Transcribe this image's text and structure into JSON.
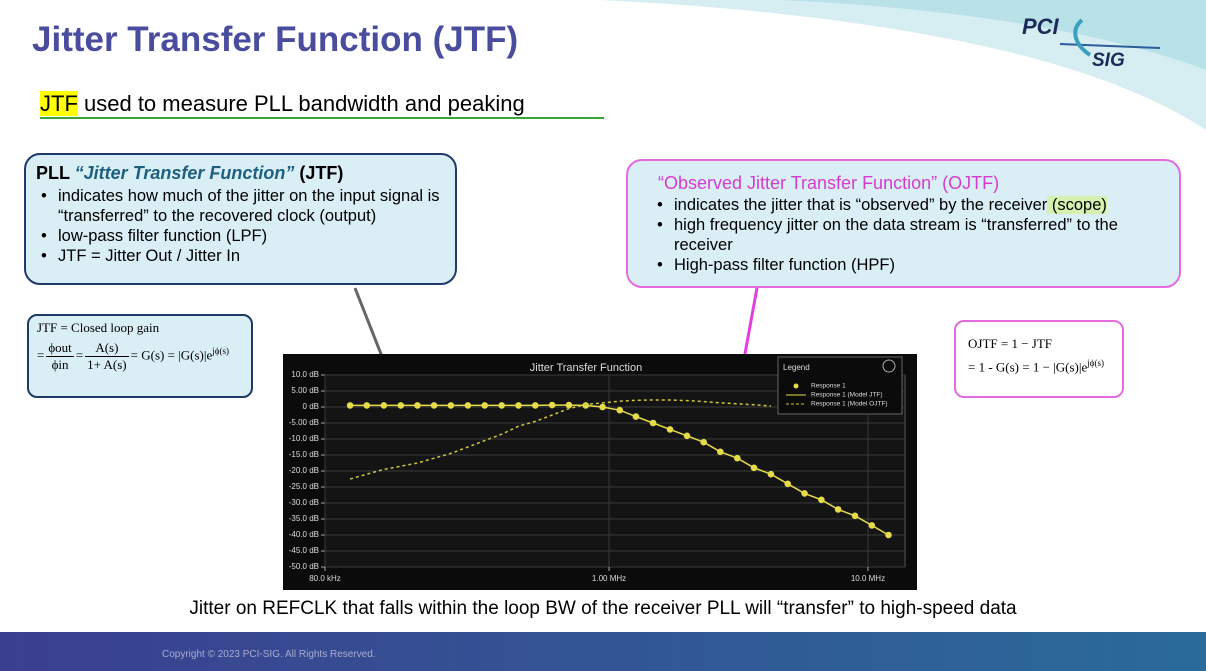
{
  "header": {
    "title": "Jitter Transfer Function (JTF)",
    "logo_top": "PCI",
    "logo_bottom": "SIG"
  },
  "subtitle": {
    "highlight": "JTF",
    "rest": " used to measure PLL bandwidth and peaking"
  },
  "left_box": {
    "heading_pre": "PLL ",
    "heading_em": "“Jitter Transfer Function”",
    "heading_post": " (JTF)",
    "bullets": [
      "indicates how much of the jitter on the input signal is “transferred” to the recovered clock (output)",
      "low-pass filter function (LPF)",
      "JTF = Jitter Out / Jitter In"
    ]
  },
  "right_box": {
    "heading": "“Observed Jitter Transfer Function” (OJTF)",
    "bullet1_text": "indicates the jitter that is “observed” by the receiver",
    "bullet1_highlight": " (scope) ",
    "bullets_rest": [
      "high frequency jitter on the data stream is “transferred” to the receiver",
      "High-pass filter function (HPF)"
    ]
  },
  "formula_left": {
    "line1": "JTF = Closed loop gain",
    "eq": "=",
    "num1": "ϕout",
    "den1": "ϕin",
    "eq2": "=",
    "num2": "A(s)",
    "den2": "1+ A(s)",
    "tail": "= G(s) = |G(s)|e",
    "sup": "jϕ(s)"
  },
  "formula_right": {
    "line1": "OJTF = 1 − JTF",
    "line2": "= 1 - G(s) = 1 − |G(s)|e",
    "sup": "jϕ(s)"
  },
  "footer": {
    "caption": "Jitter on REFCLK that falls within the loop BW of the receiver PLL will “transfer” to high-speed data",
    "copyright": "Copyright © 2023 PCI-SIG. All Rights Reserved."
  },
  "chart_data": {
    "type": "line",
    "title": "Jitter Transfer Function",
    "log_x": true,
    "grid": true,
    "legend": "top-right",
    "legend_title": "Legend",
    "x": [
      100000,
      116000,
      135000,
      157000,
      182000,
      211000,
      245000,
      285000,
      331000,
      385000,
      447000,
      519000,
      603000,
      700000,
      813000,
      944000,
      1100000,
      1270000,
      1480000,
      1720000,
      2000000,
      2320000,
      2690000,
      3130000,
      3630000,
      4220000,
      4900000,
      5690000,
      6610000,
      7670000,
      8910000,
      10350000,
      12000000
    ],
    "xlim": [
      80000,
      13900000
    ],
    "xticks": [
      {
        "value": 80000,
        "label": "80.0 kHz"
      },
      {
        "value": 1000000,
        "label": "1.00 MHz"
      },
      {
        "value": 10000000,
        "label": "10.0 MHz"
      }
    ],
    "ylim": [
      -50,
      10
    ],
    "yticks": [
      {
        "value": 10,
        "label": "10.0 dB"
      },
      {
        "value": 5,
        "label": "5.00 dB"
      },
      {
        "value": 0,
        "label": "0 dB"
      },
      {
        "value": -5,
        "label": "-5.00 dB"
      },
      {
        "value": -10,
        "label": "-10.0 dB"
      },
      {
        "value": -15,
        "label": "-15.0 dB"
      },
      {
        "value": -20,
        "label": "-20.0 dB"
      },
      {
        "value": -25,
        "label": "-25.0 dB"
      },
      {
        "value": -30,
        "label": "-30.0 dB"
      },
      {
        "value": -35,
        "label": "-35.0 dB"
      },
      {
        "value": -40,
        "label": "-40.0 dB"
      },
      {
        "value": -45,
        "label": "-45.0 dB"
      },
      {
        "value": -50,
        "label": "-50.0 dB"
      }
    ],
    "series": [
      {
        "name": "Response 1",
        "color": "#e6dc4a",
        "style": "markers",
        "values": [
          0.5,
          0.5,
          0.5,
          0.5,
          0.5,
          0.5,
          0.5,
          0.5,
          0.5,
          0.5,
          0.5,
          0.5,
          0.6,
          0.6,
          0.5,
          0,
          -1,
          -3,
          -5,
          -7,
          -9,
          -11,
          -14,
          -16,
          -19,
          -21,
          -24,
          -27,
          -29,
          -32,
          -34,
          -37,
          -40
        ]
      },
      {
        "name": "Response 1 (Model JTF)",
        "color": "#e6dc4a",
        "style": "solid",
        "values": [
          0.5,
          0.5,
          0.5,
          0.5,
          0.5,
          0.5,
          0.5,
          0.5,
          0.5,
          0.5,
          0.5,
          0.5,
          0.6,
          0.6,
          0.5,
          0,
          -1,
          -3,
          -5,
          -7,
          -9,
          -11,
          -14,
          -16,
          -19,
          -21,
          -24,
          -27,
          -29,
          -32,
          -34,
          -37,
          -40
        ]
      },
      {
        "name": "Response 1 (Model OJTF)",
        "color": "#cfc73a",
        "style": "dashed",
        "values": [
          -22.5,
          -21,
          -19.5,
          -18.5,
          -17.5,
          -16,
          -14.5,
          -12.5,
          -10.5,
          -8.5,
          -6,
          -4.5,
          -2.5,
          -0.5,
          0.8,
          1.3,
          1.8,
          2.1,
          2.2,
          2.2,
          2,
          1.7,
          1.3,
          1,
          0.7,
          0.3,
          null,
          null,
          null,
          null,
          null,
          null,
          null
        ]
      }
    ]
  }
}
